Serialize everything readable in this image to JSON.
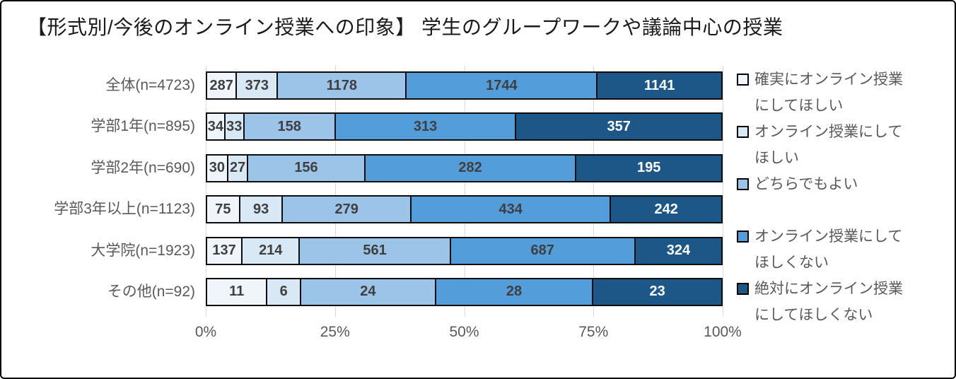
{
  "title": "【形式別/今後のオンライン授業への印象】 学生のグループワークや議論中心の授業",
  "chart_data": {
    "type": "bar",
    "subtype": "stacked-100-horizontal",
    "title": "【形式別/今後のオンライン授業への印象】 学生のグループワークや議論中心の授業",
    "categories": [
      "全体(n=4723)",
      "学部1年(n=895)",
      "学部2年(n=690)",
      "学部3年以上(n=1123)",
      "大学院(n=1923)",
      "その他(n=92)"
    ],
    "series": [
      {
        "name": "確実にオンライン授業にしてほしい",
        "color": "#EFF5FB",
        "label_color": "#3F3F3F",
        "values": [
          287,
          34,
          30,
          75,
          137,
          11
        ]
      },
      {
        "name": "オンライン授業にしてほしい",
        "color": "#D9E8F5",
        "label_color": "#3F3F3F",
        "values": [
          373,
          33,
          27,
          93,
          214,
          6
        ]
      },
      {
        "name": "どちらでもよい",
        "color": "#9CC3E8",
        "label_color": "#3F3F3F",
        "values": [
          1178,
          158,
          156,
          279,
          561,
          24
        ]
      },
      {
        "name": "オンライン授業にしてほしくない",
        "color": "#539DDB",
        "label_color": "#3F3F3F",
        "values": [
          1744,
          313,
          282,
          434,
          687,
          28
        ]
      },
      {
        "name": "絶対にオンライン授業にしてほしくない",
        "color": "#1D5788",
        "label_color": "#FFFFFF",
        "values": [
          1141,
          357,
          195,
          242,
          324,
          23
        ]
      }
    ],
    "row_totals": [
      4723,
      895,
      690,
      1123,
      1923,
      92
    ],
    "x_ticks": [
      "0%",
      "25%",
      "50%",
      "75%",
      "100%"
    ],
    "xlim": [
      0,
      100
    ],
    "grid": true,
    "gridline_color": "#D9D9D9",
    "segment_border_color": "#0D0D0D",
    "axis_text_color": "#595959",
    "legend_position": "right"
  }
}
